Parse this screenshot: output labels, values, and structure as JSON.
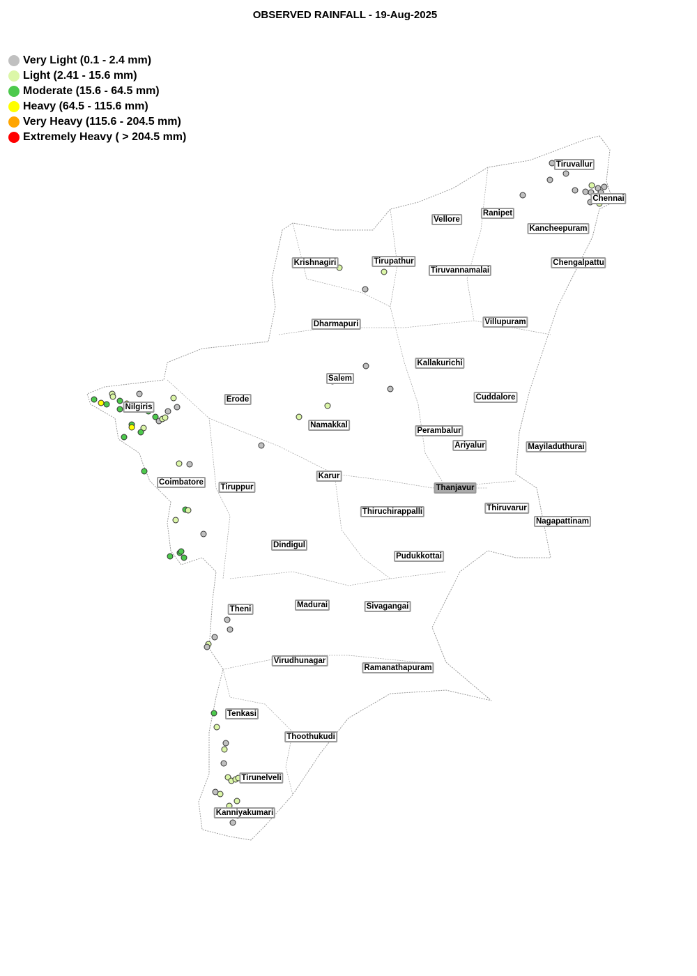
{
  "title": "OBSERVED RAINFALL - 19-Aug-2025",
  "legend": [
    {
      "key": "VL",
      "label": "Very Light (0.1 - 2.4 mm)",
      "color": "#c0c0c0"
    },
    {
      "key": "L",
      "label": "Light (2.41 - 15.6 mm)",
      "color": "#dcf7a8"
    },
    {
      "key": "M",
      "label": "Moderate (15.6 - 64.5 mm)",
      "color": "#4cc94c"
    },
    {
      "key": "H",
      "label": "Heavy (64.5 - 115.6 mm)",
      "color": "#ffff00"
    },
    {
      "key": "VH",
      "label": "Very Heavy (115.6 - 204.5 mm)",
      "color": "#ffa500"
    },
    {
      "key": "EH",
      "label": "Extremely Heavy ( > 204.5 mm)",
      "color": "#ff0000"
    }
  ],
  "districts": [
    "Tiruvallur",
    "Chennai",
    "Ranipet",
    "Vellore",
    "Kancheepuram",
    "Krishnagiri",
    "Tirupathur",
    "Tiruvannamalai",
    "Chengalpattu",
    "Dharmapuri",
    "Villupuram",
    "Kallakurichi",
    "Salem",
    "Nilgiris",
    "Erode",
    "Cuddalore",
    "Namakkal",
    "Perambalur",
    "Ariyalur",
    "Mayiladuthurai",
    "Karur",
    "Coimbatore",
    "Tiruppur",
    "Thanjavur",
    "Thiruvarur",
    "Thiruchirappalli",
    "Nagapattinam",
    "Dindigul",
    "Pudukkottai",
    "Theni",
    "Madurai",
    "Sivagangai",
    "Virudhunagar",
    "Ramanathapuram",
    "Tenkasi",
    "Thoothukudi",
    "Tirunelveli",
    "Kanniyakumari"
  ],
  "highlighted_district": "Thanjavur",
  "stations": [
    "VL",
    "VL",
    "VL",
    "VL",
    "VL",
    "VL",
    "L",
    "VL",
    "VL",
    "VL",
    "VL",
    "VL",
    "L",
    "L",
    "VL",
    "L",
    "VL",
    "VL",
    "VL",
    "VL",
    "L",
    "L",
    "VL",
    "M",
    "H",
    "M",
    "L",
    "L",
    "M",
    "H",
    "M",
    "VL",
    "M",
    "L",
    "M",
    "M",
    "VL",
    "L",
    "L",
    "VL",
    "L",
    "VL",
    "M",
    "H",
    "L",
    "M",
    "M",
    "L",
    "VL",
    "M",
    "M",
    "L",
    "L",
    "VL",
    "M",
    "M",
    "M",
    "M",
    "VL",
    "VL",
    "VL",
    "L",
    "VL",
    "M",
    "L",
    "VL",
    "L",
    "VL",
    "L",
    "L",
    "L",
    "L",
    "VL",
    "L",
    "L",
    "L",
    "VL",
    "VL",
    "VL"
  ]
}
